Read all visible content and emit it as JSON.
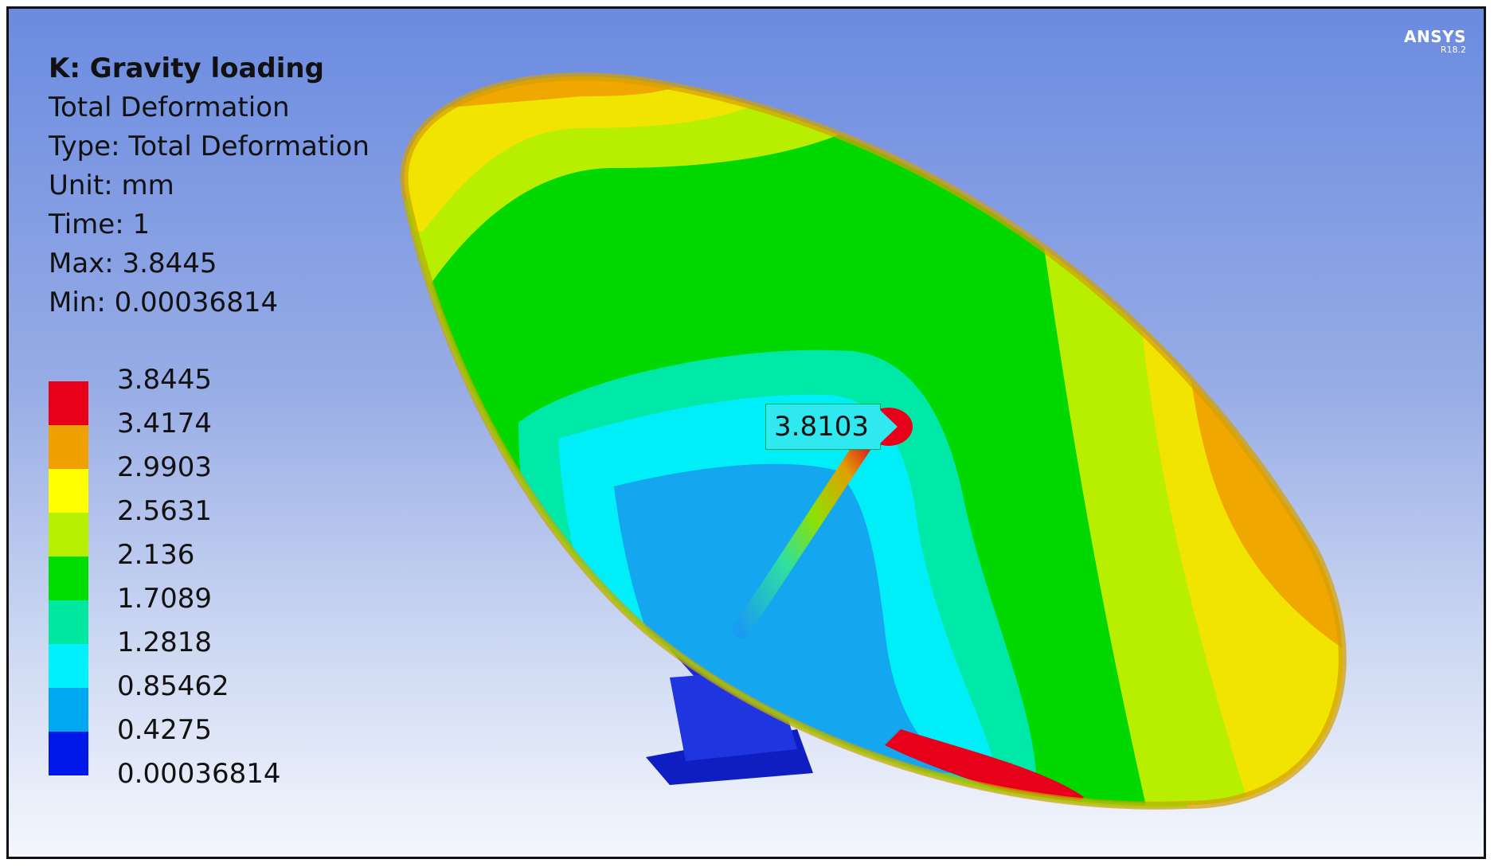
{
  "result": {
    "title": "K: Gravity loading",
    "lines": [
      "Total Deformation",
      "Type: Total Deformation",
      "Unit: mm",
      "Time: 1",
      "Max: 3.8445",
      "Min: 0.00036814"
    ]
  },
  "legend": {
    "values": [
      "3.8445",
      "3.4174",
      "2.9903",
      "2.5631",
      "2.136",
      "1.7089",
      "1.2818",
      "0.85462",
      "0.4275",
      "0.00036814"
    ],
    "colors": [
      "#e8001a",
      "#f0a100",
      "#ffff00",
      "#b7f000",
      "#00dd00",
      "#00e8a0",
      "#00f0ff",
      "#00a8f0",
      "#0018e8"
    ]
  },
  "probe": {
    "value": "3.8103"
  },
  "brand": {
    "name": "ANSYS",
    "version": "R18.2"
  }
}
